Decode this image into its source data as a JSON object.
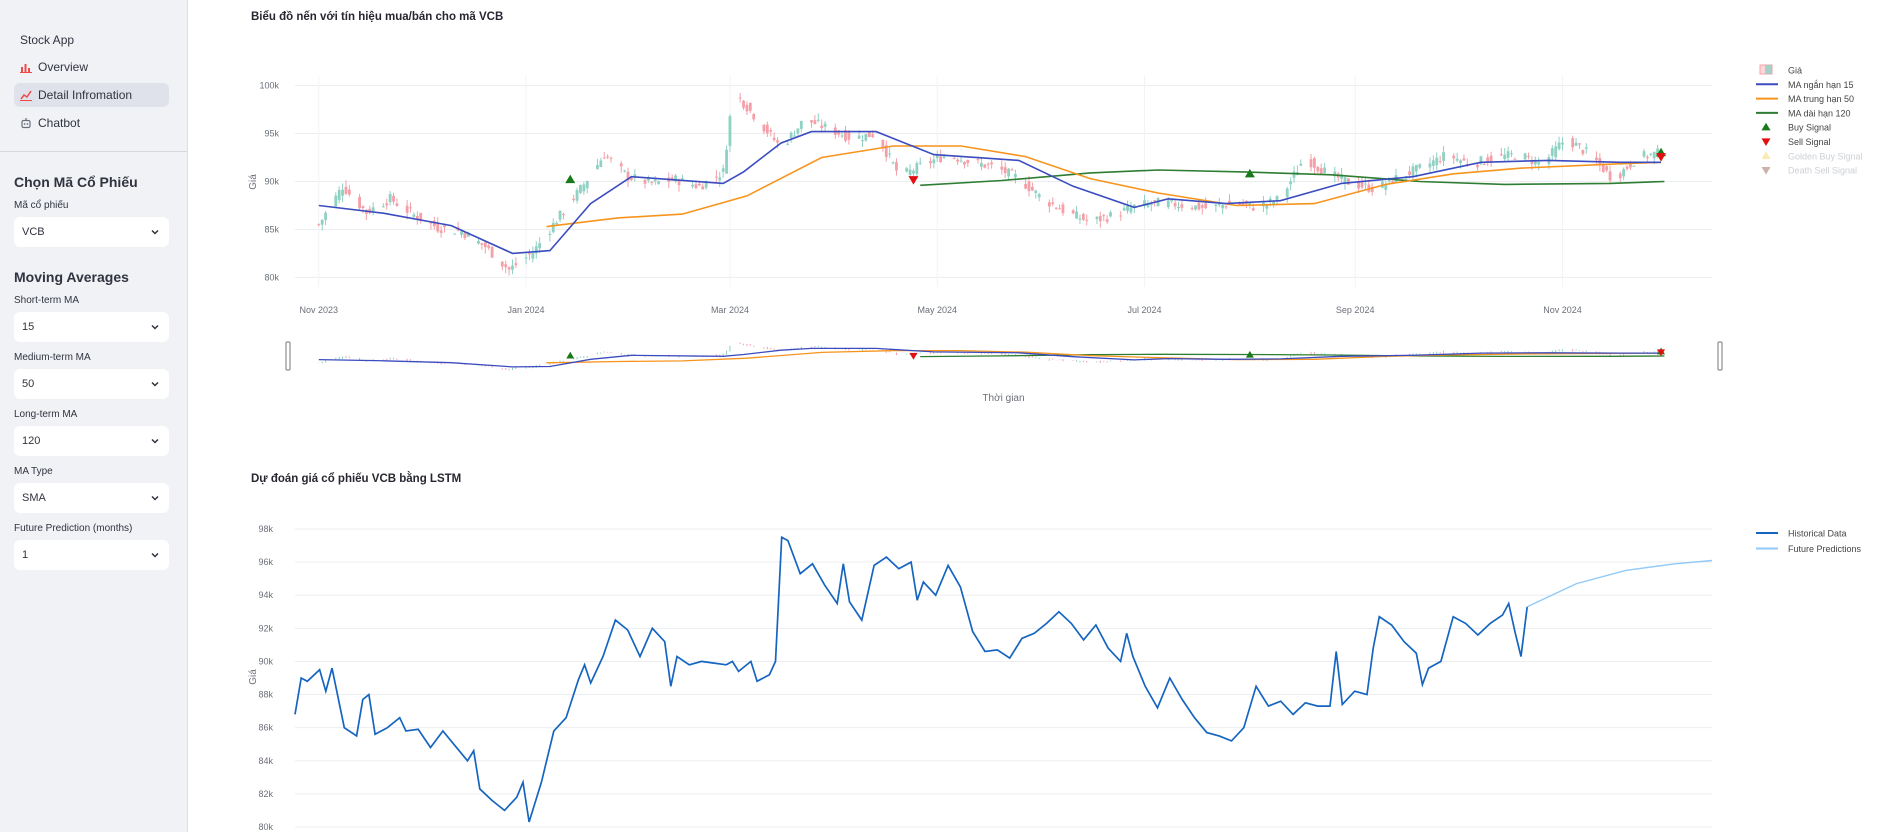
{
  "sidebar": {
    "app_name": "Stock App",
    "nav": [
      {
        "label": "Overview",
        "icon": "bar-chart-icon",
        "active": false
      },
      {
        "label": "Detail Infromation",
        "icon": "line-chart-icon",
        "active": true
      },
      {
        "label": "Chatbot",
        "icon": "robot-icon",
        "active": false
      }
    ],
    "stock_section": {
      "heading": "Chọn Mã Cổ Phiếu",
      "label": "Mã cổ phiếu",
      "value": "VCB"
    },
    "ma_section": {
      "heading": "Moving Averages",
      "short_label": "Short-term MA",
      "short_value": "15",
      "medium_label": "Medium-term MA",
      "medium_value": "50",
      "long_label": "Long-term MA",
      "long_value": "120",
      "type_label": "MA Type",
      "type_value": "SMA",
      "future_label": "Future Prediction (months)",
      "future_value": "1"
    }
  },
  "chart_data": [
    {
      "type": "candlestick",
      "title": "Biểu đồ nến với tín hiệu mua/bán cho mã VCB",
      "xlabel": "Thời gian",
      "ylabel": "Giá",
      "x_ticks": [
        "Nov 2023",
        "Jan 2024",
        "Mar 2024",
        "May 2024",
        "Jul 2024",
        "Sep 2024",
        "Nov 2024"
      ],
      "y_ticks": [
        "80k",
        "85k",
        "90k",
        "95k",
        "100k"
      ],
      "ylim": [
        79000,
        101000
      ],
      "xlim": [
        "2023-10-25",
        "2024-12-15"
      ],
      "x_domain_end": "2024-12-01",
      "up_color": "#8fd1c3",
      "down_color": "#f4a0a8",
      "legend_position": "top-right",
      "legend": [
        {
          "label": "Giá",
          "kind": "candle",
          "color": "#f4a0a8"
        },
        {
          "label": "MA ngắn hạn 15",
          "kind": "line",
          "color": "#3b4cc0"
        },
        {
          "label": "MA trung hạn 50",
          "kind": "line",
          "color": "#f7941d"
        },
        {
          "label": "MA dài hạn 120",
          "kind": "line",
          "color": "#2e7d32"
        },
        {
          "label": "Buy Signal",
          "kind": "triangle-up",
          "color": "#1a7a1a"
        },
        {
          "label": "Sell Signal",
          "kind": "triangle-down",
          "color": "#e01010"
        },
        {
          "label": "Golden Buy Signal",
          "kind": "triangle-up",
          "color": "#f5d76e",
          "faded": true
        },
        {
          "label": "Death Sell Signal",
          "kind": "triangle-down",
          "color": "#a0645a",
          "faded": true
        }
      ],
      "price_path": [
        [
          "2023-11-01",
          85500
        ],
        [
          "2023-11-08",
          89500
        ],
        [
          "2023-11-15",
          86800
        ],
        [
          "2023-11-22",
          88200
        ],
        [
          "2023-11-29",
          86500
        ],
        [
          "2023-12-06",
          85200
        ],
        [
          "2023-12-13",
          84800
        ],
        [
          "2023-12-20",
          83200
        ],
        [
          "2023-12-27",
          80800
        ],
        [
          "2024-01-03",
          82600
        ],
        [
          "2024-01-10",
          86000
        ],
        [
          "2024-01-17",
          89200
        ],
        [
          "2024-01-24",
          92800
        ],
        [
          "2024-01-31",
          90500
        ],
        [
          "2024-02-07",
          89800
        ],
        [
          "2024-02-14",
          90200
        ],
        [
          "2024-02-21",
          89500
        ],
        [
          "2024-02-28",
          91000
        ],
        [
          "2024-03-02",
          99500
        ],
        [
          "2024-03-09",
          96500
        ],
        [
          "2024-03-16",
          93500
        ],
        [
          "2024-03-23",
          96500
        ],
        [
          "2024-03-30",
          95500
        ],
        [
          "2024-04-06",
          94500
        ],
        [
          "2024-04-13",
          95000
        ],
        [
          "2024-04-20",
          90500
        ],
        [
          "2024-04-27",
          91800
        ],
        [
          "2024-05-04",
          92800
        ],
        [
          "2024-05-11",
          92000
        ],
        [
          "2024-05-18",
          91500
        ],
        [
          "2024-05-25",
          90300
        ],
        [
          "2024-06-01",
          88200
        ],
        [
          "2024-06-08",
          86800
        ],
        [
          "2024-06-15",
          85800
        ],
        [
          "2024-06-22",
          86500
        ],
        [
          "2024-06-29",
          87500
        ],
        [
          "2024-07-06",
          87800
        ],
        [
          "2024-07-13",
          87500
        ],
        [
          "2024-07-20",
          87200
        ],
        [
          "2024-07-27",
          87800
        ],
        [
          "2024-08-03",
          87300
        ],
        [
          "2024-08-10",
          88200
        ],
        [
          "2024-08-17",
          92500
        ],
        [
          "2024-08-24",
          90800
        ],
        [
          "2024-08-31",
          89800
        ],
        [
          "2024-09-07",
          89200
        ],
        [
          "2024-09-14",
          90500
        ],
        [
          "2024-09-21",
          91500
        ],
        [
          "2024-09-28",
          92800
        ],
        [
          "2024-10-05",
          91800
        ],
        [
          "2024-10-12",
          92500
        ],
        [
          "2024-10-19",
          92800
        ],
        [
          "2024-10-26",
          91800
        ],
        [
          "2024-11-02",
          94500
        ],
        [
          "2024-11-09",
          92800
        ],
        [
          "2024-11-16",
          90200
        ],
        [
          "2024-11-23",
          92500
        ],
        [
          "2024-11-30",
          93000
        ]
      ],
      "ma_short": [
        [
          "2023-11-01",
          87500
        ],
        [
          "2023-11-20",
          86700
        ],
        [
          "2023-12-10",
          85400
        ],
        [
          "2023-12-28",
          82500
        ],
        [
          "2024-01-08",
          82800
        ],
        [
          "2024-01-20",
          87700
        ],
        [
          "2024-02-01",
          90500
        ],
        [
          "2024-02-28",
          89800
        ],
        [
          "2024-03-05",
          91000
        ],
        [
          "2024-03-16",
          94000
        ],
        [
          "2024-03-25",
          95200
        ],
        [
          "2024-04-13",
          95200
        ],
        [
          "2024-04-30",
          92800
        ],
        [
          "2024-05-25",
          92200
        ],
        [
          "2024-06-10",
          89500
        ],
        [
          "2024-06-28",
          87300
        ],
        [
          "2024-07-08",
          88200
        ],
        [
          "2024-07-25",
          87700
        ],
        [
          "2024-08-10",
          88000
        ],
        [
          "2024-08-28",
          89800
        ],
        [
          "2024-09-18",
          90500
        ],
        [
          "2024-10-08",
          92000
        ],
        [
          "2024-10-28",
          92200
        ],
        [
          "2024-11-18",
          92000
        ],
        [
          "2024-11-30",
          92000
        ]
      ],
      "ma_medium": [
        [
          "2024-01-07",
          85300
        ],
        [
          "2024-01-28",
          86200
        ],
        [
          "2024-02-16",
          86600
        ],
        [
          "2024-03-06",
          88500
        ],
        [
          "2024-03-28",
          92500
        ],
        [
          "2024-04-18",
          93700
        ],
        [
          "2024-05-08",
          93700
        ],
        [
          "2024-05-27",
          92600
        ],
        [
          "2024-06-15",
          90300
        ],
        [
          "2024-07-05",
          88800
        ],
        [
          "2024-07-28",
          87500
        ],
        [
          "2024-08-20",
          87700
        ],
        [
          "2024-09-10",
          89700
        ],
        [
          "2024-09-30",
          90800
        ],
        [
          "2024-10-20",
          91400
        ],
        [
          "2024-11-15",
          91800
        ],
        [
          "2024-11-30",
          92000
        ]
      ],
      "ma_long": [
        [
          "2024-04-26",
          89600
        ],
        [
          "2024-05-20",
          90100
        ],
        [
          "2024-06-15",
          90900
        ],
        [
          "2024-07-05",
          91200
        ],
        [
          "2024-07-30",
          91000
        ],
        [
          "2024-08-25",
          90700
        ],
        [
          "2024-09-20",
          90000
        ],
        [
          "2024-10-15",
          89700
        ],
        [
          "2024-11-15",
          89800
        ],
        [
          "2024-12-01",
          90000
        ]
      ],
      "buy_signals": [
        [
          "2024-01-14",
          90200
        ],
        [
          "2024-08-01",
          90800
        ],
        [
          "2024-11-30",
          93000
        ]
      ],
      "sell_signals": [
        [
          "2024-04-24",
          90200
        ],
        [
          "2024-11-30",
          92600
        ]
      ]
    },
    {
      "type": "line",
      "title": "Dự đoán giá cổ phiếu VCB bằng LSTM",
      "ylabel": "Giá",
      "y_ticks": [
        "80k",
        "82k",
        "84k",
        "86k",
        "88k",
        "90k",
        "92k",
        "94k",
        "96k",
        "98k"
      ],
      "ylim": [
        80000,
        98000
      ],
      "legend_position": "top-right",
      "series": [
        {
          "name": "Historical Data",
          "color": "#1565c0",
          "values": [
            [
              0.0,
              86800
            ],
            [
              0.005,
              89000
            ],
            [
              0.01,
              88800
            ],
            [
              0.02,
              89500
            ],
            [
              0.025,
              88200
            ],
            [
              0.03,
              89600
            ],
            [
              0.04,
              86000
            ],
            [
              0.05,
              85500
            ],
            [
              0.055,
              87700
            ],
            [
              0.06,
              88000
            ],
            [
              0.065,
              85600
            ],
            [
              0.075,
              86000
            ],
            [
              0.085,
              86600
            ],
            [
              0.09,
              85800
            ],
            [
              0.1,
              85900
            ],
            [
              0.11,
              84800
            ],
            [
              0.12,
              85800
            ],
            [
              0.13,
              84900
            ],
            [
              0.14,
              84000
            ],
            [
              0.145,
              84600
            ],
            [
              0.15,
              82300
            ],
            [
              0.16,
              81600
            ],
            [
              0.17,
              81000
            ],
            [
              0.18,
              81800
            ],
            [
              0.185,
              82700
            ],
            [
              0.19,
              80300
            ],
            [
              0.2,
              82700
            ],
            [
              0.21,
              85800
            ],
            [
              0.22,
              86600
            ],
            [
              0.23,
              88900
            ],
            [
              0.235,
              89800
            ],
            [
              0.24,
              88700
            ],
            [
              0.25,
              90300
            ],
            [
              0.26,
              92500
            ],
            [
              0.27,
              91900
            ],
            [
              0.28,
              90300
            ],
            [
              0.29,
              92000
            ],
            [
              0.3,
              91200
            ],
            [
              0.305,
              88500
            ],
            [
              0.31,
              90300
            ],
            [
              0.32,
              89800
            ],
            [
              0.33,
              90000
            ],
            [
              0.34,
              89900
            ],
            [
              0.35,
              89800
            ],
            [
              0.355,
              90000
            ],
            [
              0.36,
              89400
            ],
            [
              0.37,
              90000
            ],
            [
              0.375,
              88800
            ],
            [
              0.385,
              89200
            ],
            [
              0.39,
              90000
            ],
            [
              0.395,
              97500
            ],
            [
              0.4,
              97300
            ],
            [
              0.41,
              95300
            ],
            [
              0.42,
              95900
            ],
            [
              0.43,
              94600
            ],
            [
              0.44,
              93500
            ],
            [
              0.445,
              95900
            ],
            [
              0.45,
              93600
            ],
            [
              0.46,
              92500
            ],
            [
              0.47,
              95800
            ],
            [
              0.48,
              96300
            ],
            [
              0.49,
              95600
            ],
            [
              0.5,
              96000
            ],
            [
              0.505,
              93700
            ],
            [
              0.51,
              94800
            ],
            [
              0.52,
              94000
            ],
            [
              0.53,
              95800
            ],
            [
              0.54,
              94500
            ],
            [
              0.55,
              91800
            ],
            [
              0.56,
              90600
            ],
            [
              0.57,
              90700
            ],
            [
              0.58,
              90200
            ],
            [
              0.59,
              91400
            ],
            [
              0.6,
              91700
            ],
            [
              0.61,
              92300
            ],
            [
              0.62,
              93000
            ],
            [
              0.63,
              92300
            ],
            [
              0.64,
              91300
            ],
            [
              0.65,
              92200
            ],
            [
              0.66,
              90800
            ],
            [
              0.67,
              90000
            ],
            [
              0.675,
              91700
            ],
            [
              0.68,
              90300
            ],
            [
              0.69,
              88500
            ],
            [
              0.7,
              87200
            ],
            [
              0.71,
              89000
            ],
            [
              0.72,
              87700
            ],
            [
              0.73,
              86600
            ],
            [
              0.74,
              85700
            ],
            [
              0.75,
              85500
            ],
            [
              0.76,
              85200
            ],
            [
              0.77,
              86000
            ],
            [
              0.78,
              88500
            ],
            [
              0.79,
              87300
            ],
            [
              0.8,
              87600
            ],
            [
              0.81,
              86800
            ],
            [
              0.82,
              87500
            ],
            [
              0.83,
              87300
            ],
            [
              0.84,
              87300
            ],
            [
              0.845,
              90600
            ],
            [
              0.85,
              87400
            ],
            [
              0.86,
              88200
            ],
            [
              0.87,
              88000
            ],
            [
              0.875,
              90800
            ],
            [
              0.88,
              92700
            ],
            [
              0.89,
              92200
            ],
            [
              0.9,
              91200
            ],
            [
              0.91,
              90500
            ],
            [
              0.915,
              88600
            ],
            [
              0.92,
              89600
            ],
            [
              0.93,
              90000
            ],
            [
              0.94,
              92700
            ],
            [
              0.95,
              92300
            ],
            [
              0.96,
              91600
            ],
            [
              0.97,
              92300
            ],
            [
              0.98,
              92800
            ],
            [
              0.985,
              93500
            ],
            [
              0.99,
              91800
            ],
            [
              0.995,
              90300
            ],
            [
              1.0,
              93300
            ]
          ]
        },
        {
          "name": "Future Predictions",
          "color": "#90caf9",
          "values": [
            [
              1.0,
              93300
            ],
            [
              1.04,
              94700
            ],
            [
              1.08,
              95500
            ],
            [
              1.12,
              95900
            ],
            [
              1.15,
              96100
            ]
          ]
        }
      ]
    }
  ]
}
